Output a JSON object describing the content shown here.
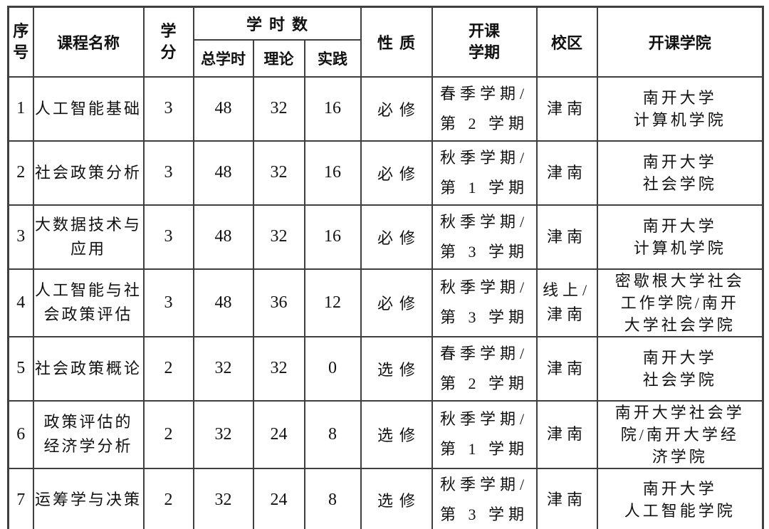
{
  "page": {
    "background_color": "#ffffff",
    "border_color": "#3f3f3f",
    "text_color": "#111111"
  },
  "table": {
    "headers": {
      "index_lines": [
        "序",
        "号"
      ],
      "course": "课程名称",
      "credits_lines": [
        "学",
        "分"
      ],
      "hours_group": "学时数",
      "hours_total": "总学时",
      "hours_theory": "理论",
      "hours_practice": "实践",
      "nature": "性质",
      "semester_lines": [
        "开课",
        "学期"
      ],
      "campus": "校区",
      "college": "开课学院"
    },
    "rows": [
      {
        "no": "1",
        "course_lines": [
          "人工智能基础"
        ],
        "credits": "3",
        "total": "48",
        "theory": "32",
        "practice": "16",
        "nature": "必修",
        "semester_lines": [
          "春季学期/",
          "第 2 学期"
        ],
        "campus_lines": [
          "津南"
        ],
        "college_lines": [
          "南开大学",
          "计算机学院"
        ]
      },
      {
        "no": "2",
        "course_lines": [
          "社会政策分析"
        ],
        "credits": "3",
        "total": "48",
        "theory": "32",
        "practice": "16",
        "nature": "必修",
        "semester_lines": [
          "秋季学期/",
          "第 1 学期"
        ],
        "campus_lines": [
          "津南"
        ],
        "college_lines": [
          "南开大学",
          "社会学院"
        ]
      },
      {
        "no": "3",
        "course_lines": [
          "大数据技术与",
          "应用"
        ],
        "credits": "3",
        "total": "48",
        "theory": "32",
        "practice": "16",
        "nature": "必修",
        "semester_lines": [
          "秋季学期/",
          "第 3 学期"
        ],
        "campus_lines": [
          "津南"
        ],
        "college_lines": [
          "南开大学",
          "计算机学院"
        ]
      },
      {
        "no": "4",
        "course_lines": [
          "人工智能与社",
          "会政策评估"
        ],
        "credits": "3",
        "total": "48",
        "theory": "36",
        "practice": "12",
        "nature": "必修",
        "semester_lines": [
          "秋季学期/",
          "第 3 学期"
        ],
        "campus_lines": [
          "线上/",
          "津南"
        ],
        "college_lines": [
          "密歇根大学社会",
          "工作学院/南开",
          "大学社会学院"
        ]
      },
      {
        "no": "5",
        "course_lines": [
          "社会政策概论"
        ],
        "credits": "2",
        "total": "32",
        "theory": "32",
        "practice": "0",
        "nature": "选修",
        "semester_lines": [
          "春季学期/",
          "第 2 学期"
        ],
        "campus_lines": [
          "津南"
        ],
        "college_lines": [
          "南开大学",
          "社会学院"
        ]
      },
      {
        "no": "6",
        "course_lines": [
          "政策评估的",
          "经济学分析"
        ],
        "credits": "2",
        "total": "32",
        "theory": "24",
        "practice": "8",
        "nature": "选修",
        "semester_lines": [
          "秋季学期/",
          "第 1 学期"
        ],
        "campus_lines": [
          "津南"
        ],
        "college_lines": [
          "南开大学社会学",
          "院/南开大学经",
          "济学院"
        ]
      },
      {
        "no": "7",
        "course_lines": [
          "运筹学与决策"
        ],
        "credits": "2",
        "total": "32",
        "theory": "24",
        "practice": "8",
        "nature": "选修",
        "semester_lines": [
          "秋季学期/",
          "第 3 学期"
        ],
        "campus_lines": [
          "津南"
        ],
        "college_lines": [
          "南开大学",
          "人工智能学院"
        ]
      }
    ]
  }
}
